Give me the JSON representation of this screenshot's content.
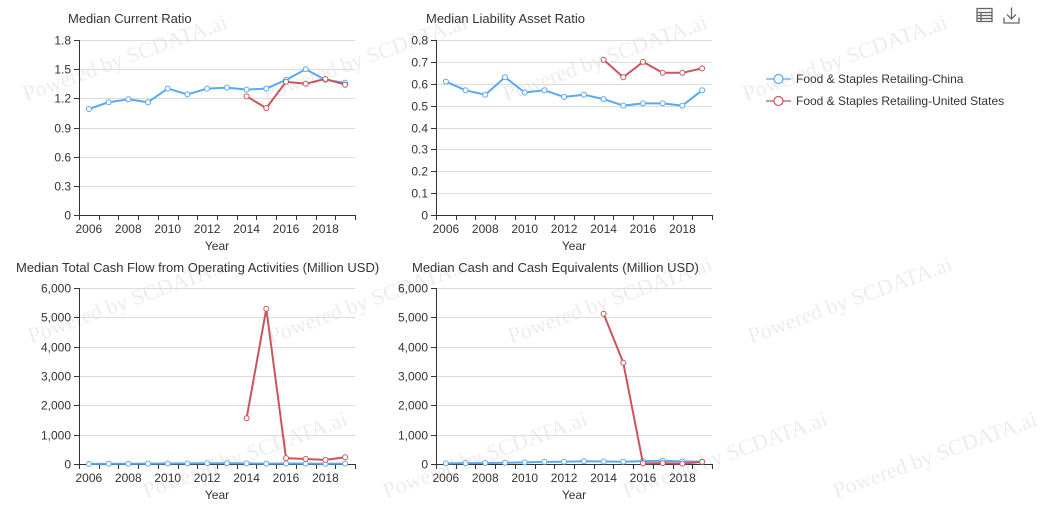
{
  "toolbar": {
    "icons": [
      "data-view-icon",
      "download-icon"
    ]
  },
  "legend": {
    "position": "right",
    "items": [
      {
        "label": "Food & Staples Retailing-China",
        "color": "#5aa8f0"
      },
      {
        "label": "Food & Staples Retailing-United States",
        "color": "#c9565c"
      }
    ]
  },
  "watermark": {
    "text": "Powered by SCDATA.ai"
  },
  "chart_data": [
    {
      "type": "line",
      "title": "Median Current Ratio",
      "xlabel": "Year",
      "x": [
        2006,
        2007,
        2008,
        2009,
        2010,
        2011,
        2012,
        2013,
        2014,
        2015,
        2016,
        2017,
        2018,
        2019
      ],
      "xticks": [
        "2006",
        "2008",
        "2010",
        "2012",
        "2014",
        "2016",
        "2018"
      ],
      "ylim": [
        0,
        1.8
      ],
      "yticks": [
        "0",
        "0.3",
        "0.6",
        "0.9",
        "1.2",
        "1.5",
        "1.8"
      ],
      "grid": true,
      "legend": "right",
      "series": [
        {
          "name": "Food & Staples Retailing-China",
          "color": "#5aa8f0",
          "values": [
            1.09,
            1.16,
            1.19,
            1.16,
            1.3,
            1.24,
            1.3,
            1.31,
            1.29,
            1.3,
            1.39,
            1.5,
            1.39,
            1.36
          ]
        },
        {
          "name": "Food & Staples Retailing-United States",
          "color": "#c9565c",
          "values": [
            null,
            null,
            null,
            null,
            null,
            null,
            null,
            null,
            1.22,
            1.1,
            1.37,
            1.35,
            1.4,
            1.34
          ]
        }
      ]
    },
    {
      "type": "line",
      "title": "Median Liability Asset Ratio",
      "xlabel": "Year",
      "x": [
        2006,
        2007,
        2008,
        2009,
        2010,
        2011,
        2012,
        2013,
        2014,
        2015,
        2016,
        2017,
        2018,
        2019
      ],
      "xticks": [
        "2006",
        "2008",
        "2010",
        "2012",
        "2014",
        "2016",
        "2018"
      ],
      "ylim": [
        0,
        0.8
      ],
      "yticks": [
        "0",
        "0.1",
        "0.2",
        "0.3",
        "0.4",
        "0.5",
        "0.6",
        "0.7",
        "0.8"
      ],
      "grid": true,
      "legend": "right",
      "series": [
        {
          "name": "Food & Staples Retailing-China",
          "color": "#5aa8f0",
          "values": [
            0.61,
            0.57,
            0.55,
            0.63,
            0.56,
            0.57,
            0.54,
            0.55,
            0.53,
            0.5,
            0.51,
            0.51,
            0.5,
            0.57
          ]
        },
        {
          "name": "Food & Staples Retailing-United States",
          "color": "#c9565c",
          "values": [
            null,
            null,
            null,
            null,
            null,
            null,
            null,
            null,
            0.71,
            0.63,
            0.7,
            0.65,
            0.65,
            0.67
          ]
        }
      ]
    },
    {
      "type": "line",
      "title": "Median Total Cash Flow from Operating Activities (Million USD)",
      "xlabel": "Year",
      "x": [
        2006,
        2007,
        2008,
        2009,
        2010,
        2011,
        2012,
        2013,
        2014,
        2015,
        2016,
        2017,
        2018,
        2019
      ],
      "xticks": [
        "2006",
        "2008",
        "2010",
        "2012",
        "2014",
        "2016",
        "2018"
      ],
      "ylim": [
        0,
        6000
      ],
      "yticks": [
        "0",
        "1,000",
        "2,000",
        "3,000",
        "4,000",
        "5,000",
        "6,000"
      ],
      "grid": true,
      "legend": "right",
      "series": [
        {
          "name": "Food & Staples Retailing-China",
          "color": "#5aa8f0",
          "values": [
            5,
            8,
            10,
            12,
            18,
            22,
            25,
            28,
            20,
            14,
            16,
            12,
            10,
            12
          ]
        },
        {
          "name": "Food & Staples Retailing-United States",
          "color": "#c9565c",
          "values": [
            null,
            null,
            null,
            null,
            null,
            null,
            null,
            null,
            1560,
            5290,
            200,
            170,
            140,
            230
          ]
        }
      ]
    },
    {
      "type": "line",
      "title": "Median Cash and Cash Equivalents (Million USD)",
      "xlabel": "Year",
      "x": [
        2006,
        2007,
        2008,
        2009,
        2010,
        2011,
        2012,
        2013,
        2014,
        2015,
        2016,
        2017,
        2018,
        2019
      ],
      "xticks": [
        "2006",
        "2008",
        "2010",
        "2012",
        "2014",
        "2016",
        "2018"
      ],
      "ylim": [
        0,
        6000
      ],
      "yticks": [
        "0",
        "1,000",
        "2,000",
        "3,000",
        "4,000",
        "5,000",
        "6,000"
      ],
      "grid": true,
      "legend": "right",
      "series": [
        {
          "name": "Food & Staples Retailing-China",
          "color": "#5aa8f0",
          "values": [
            20,
            30,
            35,
            40,
            55,
            70,
            80,
            95,
            85,
            75,
            100,
            110,
            90,
            80
          ]
        },
        {
          "name": "Food & Staples Retailing-United States",
          "color": "#c9565c",
          "values": [
            null,
            null,
            null,
            null,
            null,
            null,
            null,
            null,
            5120,
            3450,
            20,
            30,
            15,
            70
          ]
        }
      ]
    }
  ]
}
